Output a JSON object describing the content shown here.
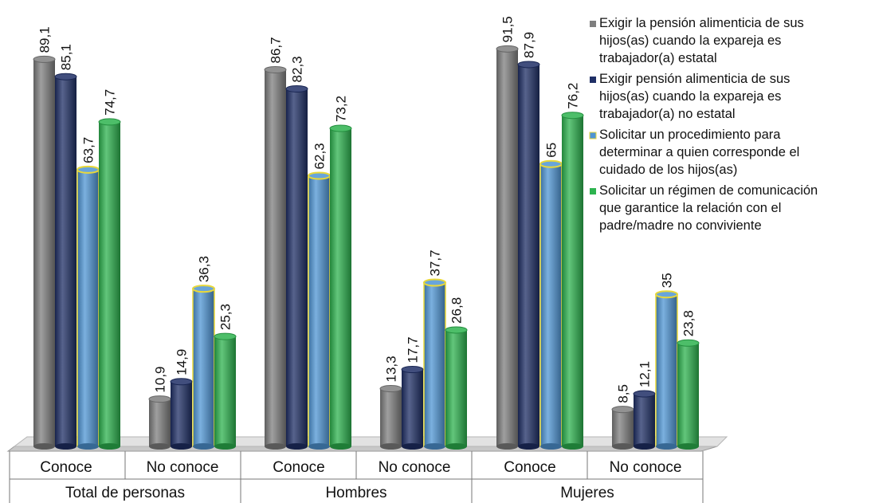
{
  "chart_data": {
    "type": "bar",
    "title": "",
    "xlabel": "",
    "ylabel": "",
    "ylim": [
      0,
      100
    ],
    "grid": false,
    "legend_position": "top-right",
    "groups": [
      {
        "label": "Total de personas",
        "categories": [
          "Conoce",
          "No conoce"
        ]
      },
      {
        "label": "Hombres",
        "categories": [
          "Conoce",
          "No conoce"
        ]
      },
      {
        "label": "Mujeres",
        "categories": [
          "Conoce",
          "No conoce"
        ]
      }
    ],
    "categories": [
      "Total de personas - Conoce",
      "Total de personas - No conoce",
      "Hombres - Conoce",
      "Hombres - No conoce",
      "Mujeres - Conoce",
      "Mujeres - No conoce"
    ],
    "series": [
      {
        "name": "Exigir la pensión alimenticia de sus hijos(as) cuando la expareja es trabajador(a) estatal",
        "legend_lines": [
          "Exigir la pensión alimenticia de sus",
          "hijos(as) cuando la expareja es",
          "trabajador(a) estatal"
        ],
        "color": "#7f7f7f",
        "values": [
          89.1,
          10.9,
          86.7,
          13.3,
          91.5,
          8.5
        ],
        "labels": [
          "89,1",
          "10,9",
          "86,7",
          "13,3",
          "91,5",
          "8,5"
        ]
      },
      {
        "name": "Exigir pensión alimenticia de sus hijos(as) cuando la expareja es trabajador(a) no estatal",
        "legend_lines": [
          "Exigir pensión alimenticia de sus",
          "hijos(as) cuando la expareja es",
          "trabajador(a) no estatal"
        ],
        "color": "#1f2f66",
        "values": [
          85.1,
          14.9,
          82.3,
          17.7,
          87.9,
          12.1
        ],
        "labels": [
          "85,1",
          "14,9",
          "82,3",
          "17,7",
          "87,9",
          "12,1"
        ]
      },
      {
        "name": "Solicitar un procedimiento para determinar a quien corresponde el cuidado de los hijos(as)",
        "legend_lines": [
          "Solicitar un procedimiento para",
          "determinar a quien corresponde el",
          "cuidado de los hijos(as)"
        ],
        "color": "#4f95d4",
        "outline": "#e8d83a",
        "values": [
          63.7,
          36.3,
          62.3,
          37.7,
          65,
          35
        ],
        "labels": [
          "63,7",
          "36,3",
          "62,3",
          "37,7",
          "65",
          "35"
        ]
      },
      {
        "name": "Solicitar un régimen de comunicación que garantice la relación con el padre/madre no conviviente",
        "legend_lines": [
          "Solicitar un régimen de comunicación",
          "que garantice la relación con el",
          "padre/madre no conviviente"
        ],
        "color": "#2db34f",
        "values": [
          74.7,
          25.3,
          73.2,
          26.8,
          76.2,
          23.8
        ],
        "labels": [
          "74,7",
          "25,3",
          "73,2",
          "26,8",
          "76,2",
          "23,8"
        ]
      }
    ]
  }
}
